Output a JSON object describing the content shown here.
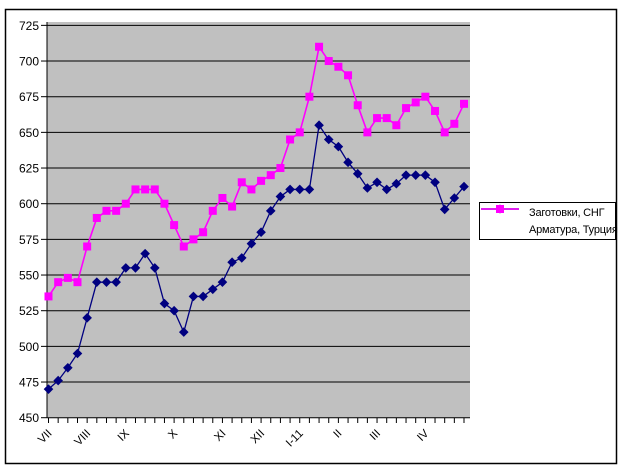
{
  "chart_data": {
    "type": "line",
    "title": "",
    "xlabel": "",
    "ylabel": "",
    "ylim": [
      450,
      725
    ],
    "y_ticks": [
      450,
      475,
      500,
      525,
      550,
      575,
      600,
      625,
      650,
      675,
      700,
      725
    ],
    "x_tick_labels": [
      "VII",
      "VIII",
      "IX",
      "X",
      "XI",
      "XII",
      "I-11",
      "II",
      "III",
      "IV"
    ],
    "x_label_indices": [
      0,
      4,
      8,
      13,
      18,
      22,
      26,
      30,
      34,
      39
    ],
    "n_points": 44,
    "grid": true,
    "plot_bg": "#c0c0c0",
    "grid_color": "#000000",
    "legend_position": "middle-right",
    "series": [
      {
        "name": "Заготовки, СНГ",
        "color": "#000080",
        "marker": "diamond",
        "values": [
          470,
          476,
          485,
          495,
          520,
          545,
          545,
          545,
          555,
          555,
          565,
          555,
          530,
          525,
          510,
          535,
          535,
          540,
          545,
          559,
          562,
          572,
          580,
          595,
          605,
          610,
          610,
          610,
          655,
          645,
          640,
          629,
          621,
          611,
          615,
          610,
          614,
          620,
          620,
          620,
          615,
          596,
          604,
          612
        ]
      },
      {
        "name": "Арматура, Турция",
        "color": "#ff00ff",
        "marker": "square",
        "values": [
          535,
          545,
          548,
          545,
          570,
          590,
          595,
          595,
          600,
          610,
          610,
          610,
          600,
          585,
          570,
          575,
          580,
          595,
          604,
          598,
          615,
          610,
          616,
          620,
          625,
          645,
          650,
          675,
          710,
          700,
          696,
          690,
          669,
          650,
          660,
          660,
          655,
          667,
          671,
          675,
          665,
          650,
          656,
          670
        ]
      }
    ]
  },
  "legend": {
    "items": [
      {
        "label": "Заготовки, СНГ"
      },
      {
        "label": "Арматура, Турция"
      }
    ]
  }
}
